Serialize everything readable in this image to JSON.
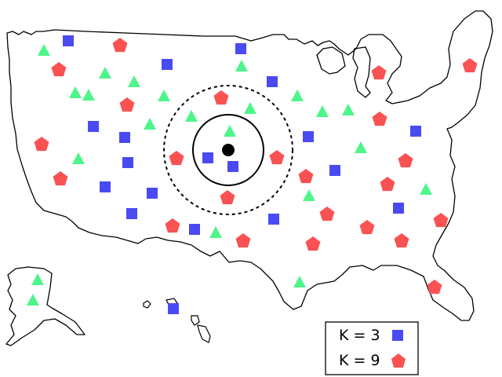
{
  "colors": {
    "triangle": "#4ef58a",
    "square": "#4a4af2",
    "pentagon": "#fa5252",
    "outline": "#000000",
    "background": "#ffffff"
  },
  "legend": {
    "items": [
      {
        "label": "K = 3",
        "symbol": "square"
      },
      {
        "label": "K = 9",
        "symbol": "pentagon"
      }
    ]
  },
  "query_point": {
    "shape": "black-dot"
  },
  "neighborhoods": [
    {
      "k": 3,
      "style": "solid"
    },
    {
      "k": 9,
      "style": "dashed"
    }
  ]
}
